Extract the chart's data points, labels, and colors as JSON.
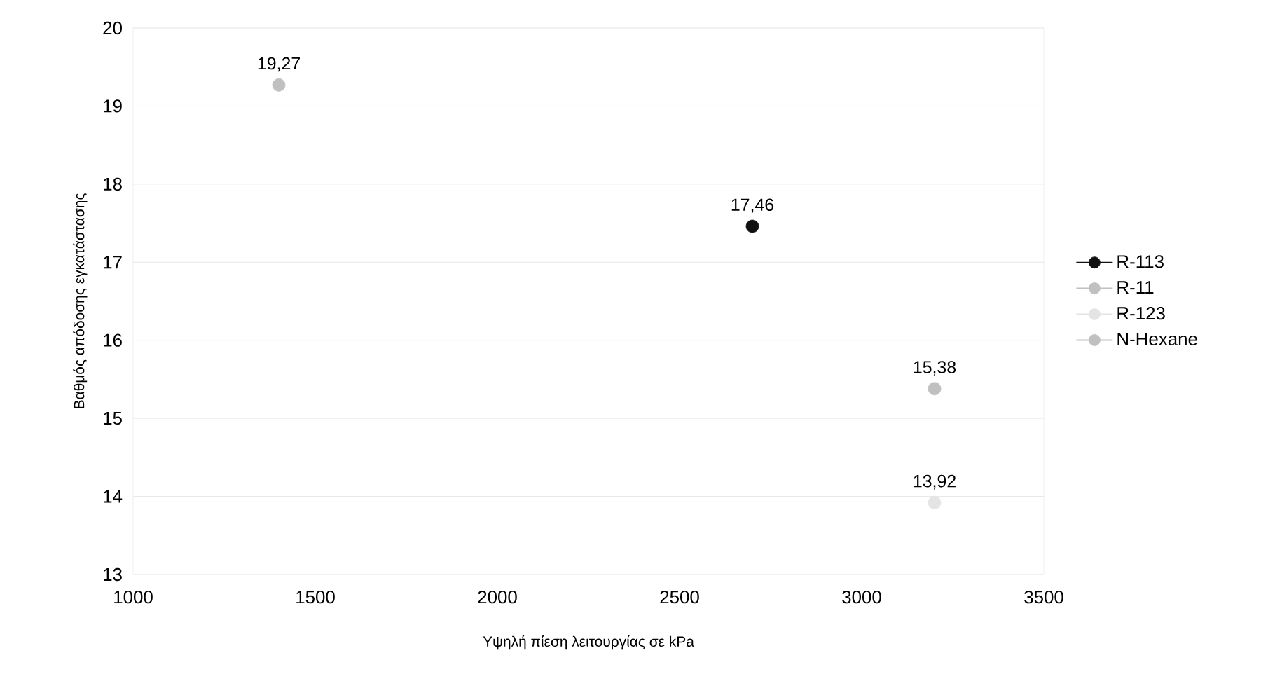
{
  "chart_data": {
    "type": "scatter",
    "xlabel": "Υψηλή πίεση λειτουργίας σε kPa",
    "ylabel": "Βαθμός απόδοσης εγκατάστασης",
    "series": [
      {
        "name": "R-113",
        "color": "#111111",
        "x": [
          2700
        ],
        "values": [
          17.46
        ],
        "value_labels": [
          "17,46"
        ]
      },
      {
        "name": "R-11",
        "color": "#c0c0c0",
        "x": [
          1400
        ],
        "values": [
          19.27
        ],
        "value_labels": [
          "19,27"
        ]
      },
      {
        "name": "R-123",
        "color": "#e4e4e4",
        "x": [
          3200
        ],
        "values": [
          13.92
        ],
        "value_labels": [
          "13,92"
        ]
      },
      {
        "name": "N-Hexane",
        "color": "#c0c0c0",
        "x": [
          3200
        ],
        "values": [
          15.38
        ],
        "value_labels": [
          "15,38"
        ]
      }
    ],
    "xlim": [
      1000,
      3500
    ],
    "xticks": [
      1000,
      1500,
      2000,
      2500,
      3000,
      3500
    ],
    "ylim": [
      13,
      20
    ],
    "yticks": [
      13,
      14,
      15,
      16,
      17,
      18,
      19,
      20
    ],
    "grid": "y",
    "legend": "right",
    "marker": "circle"
  }
}
